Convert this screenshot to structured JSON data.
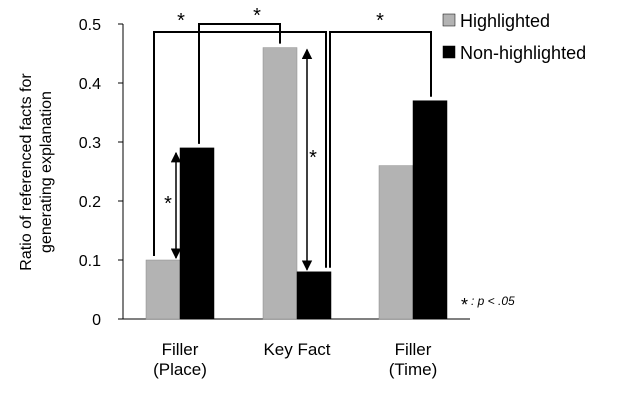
{
  "chart_data": {
    "type": "bar",
    "categories": [
      [
        "Filler",
        "(Place)"
      ],
      [
        "Key Fact"
      ],
      [
        "Filler",
        "(Time)"
      ]
    ],
    "series": [
      {
        "name": "Highlighted",
        "values": [
          0.1,
          0.46,
          0.26
        ]
      },
      {
        "name": "Non-highlighted",
        "values": [
          0.29,
          0.08,
          0.37
        ]
      }
    ],
    "ylabel": [
      "Ratio of referenced facts for",
      "generating explanation"
    ],
    "ylim": [
      0,
      0.5
    ],
    "yticks": [
      "0",
      "0.1",
      "0.2",
      "0.3",
      "0.4",
      "0.5"
    ],
    "grid": false,
    "legend_position": "top-right",
    "colors": {
      "Highlighted": "#b3b3b3",
      "Non-highlighted": "#000000"
    },
    "significance_marker": "*",
    "significance_note": {
      "symbol": "*",
      "text": ": p < .05"
    },
    "significance_lines": [
      {
        "from": [
          0,
          "Highlighted"
        ],
        "to": [
          0,
          "Non-highlighted"
        ],
        "type": "vertical-arrow"
      },
      {
        "from": [
          1,
          "Highlighted"
        ],
        "to": [
          1,
          "Non-highlighted"
        ],
        "type": "vertical-arrow"
      },
      {
        "from": [
          0,
          "Highlighted"
        ],
        "to": [
          1,
          "Non-highlighted"
        ],
        "type": "bracket"
      },
      {
        "from": [
          0,
          "Non-highlighted"
        ],
        "to": [
          1,
          "Highlighted"
        ],
        "type": "bracket"
      },
      {
        "from": [
          1,
          "Non-highlighted"
        ],
        "to": [
          2,
          "Non-highlighted"
        ],
        "type": "bracket"
      }
    ]
  }
}
